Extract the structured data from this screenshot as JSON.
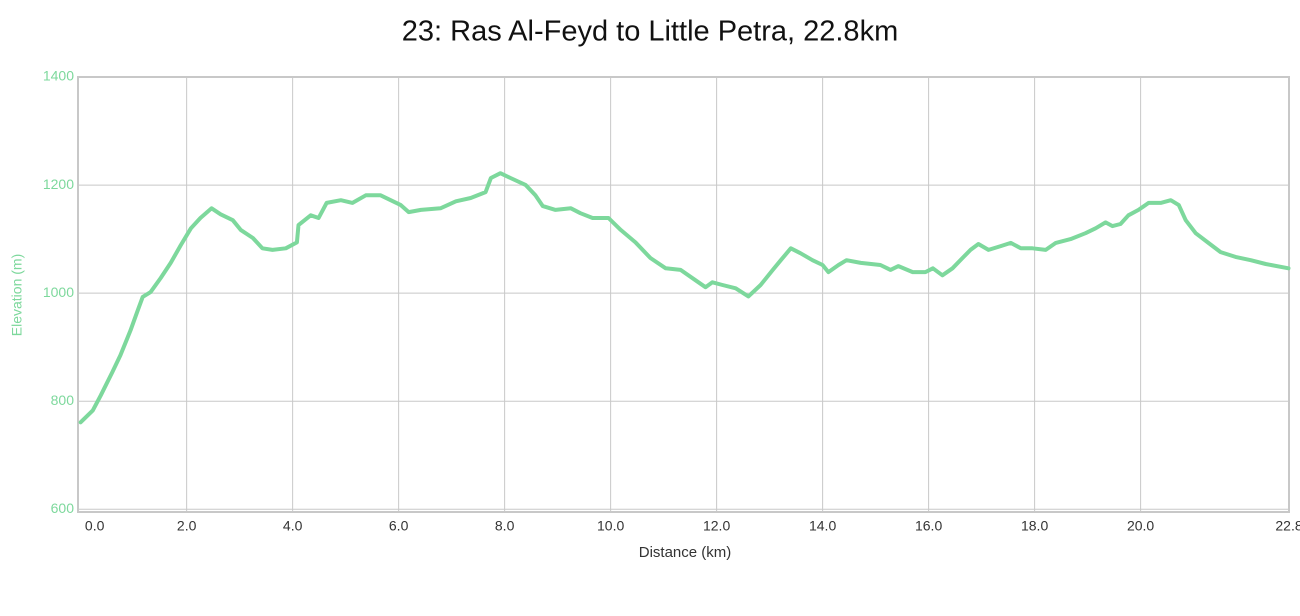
{
  "chart_data": {
    "type": "line",
    "title": "23: Ras Al-Feyd to Little Petra, 22.8km",
    "x_label": "Distance (km)",
    "y_label": "Elevation (m)",
    "x": [
      0,
      0.23,
      0.38,
      0.6,
      0.75,
      0.94,
      1.08,
      1.17,
      1.32,
      1.51,
      1.7,
      1.89,
      2.08,
      2.26,
      2.47,
      2.64,
      2.87,
      3.02,
      3.25,
      3.43,
      3.62,
      3.87,
      4.08,
      4.11,
      4.34,
      4.49,
      4.64,
      4.91,
      5.13,
      5.38,
      5.66,
      5.85,
      6.04,
      6.19,
      6.42,
      6.79,
      7.08,
      7.36,
      7.64,
      7.74,
      7.92,
      8.11,
      8.4,
      8.58,
      8.72,
      8.96,
      9.25,
      9.43,
      9.66,
      9.96,
      10.19,
      10.47,
      10.75,
      11.04,
      11.32,
      11.6,
      11.79,
      11.92,
      12.11,
      12.36,
      12.6,
      12.83,
      13.06,
      13.21,
      13.4,
      13.58,
      13.81,
      14.0,
      14.11,
      14.3,
      14.45,
      14.72,
      15.09,
      15.28,
      15.43,
      15.7,
      15.94,
      16.08,
      16.26,
      16.45,
      16.64,
      16.79,
      16.94,
      17.13,
      17.36,
      17.55,
      17.74,
      17.96,
      18.21,
      18.4,
      18.68,
      18.96,
      19.15,
      19.34,
      19.47,
      19.62,
      19.77,
      19.96,
      20.15,
      20.38,
      20.57,
      20.72,
      20.85,
      21.04,
      21.28,
      21.51,
      21.79,
      22.08,
      22.36,
      22.79
    ],
    "series": [
      {
        "name": "Elevation",
        "color": "#7dd89c",
        "values": [
          761,
          783,
          811,
          854,
          885,
          931,
          969,
          993,
          1002,
          1028,
          1056,
          1089,
          1120,
          1139,
          1157,
          1146,
          1135,
          1117,
          1102,
          1083,
          1080,
          1083,
          1094,
          1126,
          1144,
          1139,
          1167,
          1172,
          1167,
          1181,
          1181,
          1172,
          1163,
          1150,
          1154,
          1157,
          1170,
          1176,
          1187,
          1213,
          1222,
          1213,
          1200,
          1181,
          1161,
          1154,
          1157,
          1148,
          1139,
          1139,
          1117,
          1094,
          1065,
          1046,
          1043,
          1024,
          1011,
          1020,
          1015,
          1009,
          994,
          1015,
          1043,
          1061,
          1083,
          1074,
          1061,
          1052,
          1039,
          1052,
          1061,
          1056,
          1052,
          1043,
          1050,
          1039,
          1039,
          1046,
          1033,
          1046,
          1065,
          1080,
          1091,
          1080,
          1087,
          1093,
          1083,
          1083,
          1080,
          1093,
          1100,
          1111,
          1120,
          1131,
          1124,
          1128,
          1144,
          1154,
          1167,
          1167,
          1172,
          1163,
          1135,
          1111,
          1093,
          1076,
          1067,
          1061,
          1054,
          1046
        ]
      }
    ],
    "xlim": [
      -0.05,
      22.8
    ],
    "xticks": [
      {
        "value": 0,
        "label": "0.0"
      },
      {
        "value": 2,
        "label": "2.0"
      },
      {
        "value": 4,
        "label": "4.0"
      },
      {
        "value": 6,
        "label": "6.0"
      },
      {
        "value": 8,
        "label": "8.0"
      },
      {
        "value": 10,
        "label": "10.0"
      },
      {
        "value": 12,
        "label": "12.0"
      },
      {
        "value": 14,
        "label": "14.0"
      },
      {
        "value": 16,
        "label": "16.0"
      },
      {
        "value": 18,
        "label": "18.0"
      },
      {
        "value": 20,
        "label": "20.0"
      },
      22.8
    ],
    "ylim": [
      595,
      1400
    ],
    "yticks": [
      600,
      800,
      1000,
      1200,
      1400
    ],
    "grid": true
  }
}
